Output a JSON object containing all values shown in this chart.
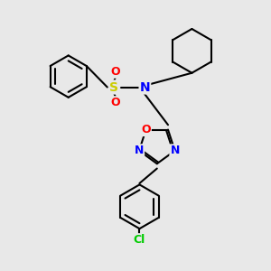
{
  "bg_color": "#e8e8e8",
  "bond_color": "#000000",
  "bond_width": 1.5,
  "atom_colors": {
    "N": "#0000ff",
    "O": "#ff0000",
    "S": "#cccc00",
    "Cl": "#00cc00",
    "C": "#000000"
  }
}
